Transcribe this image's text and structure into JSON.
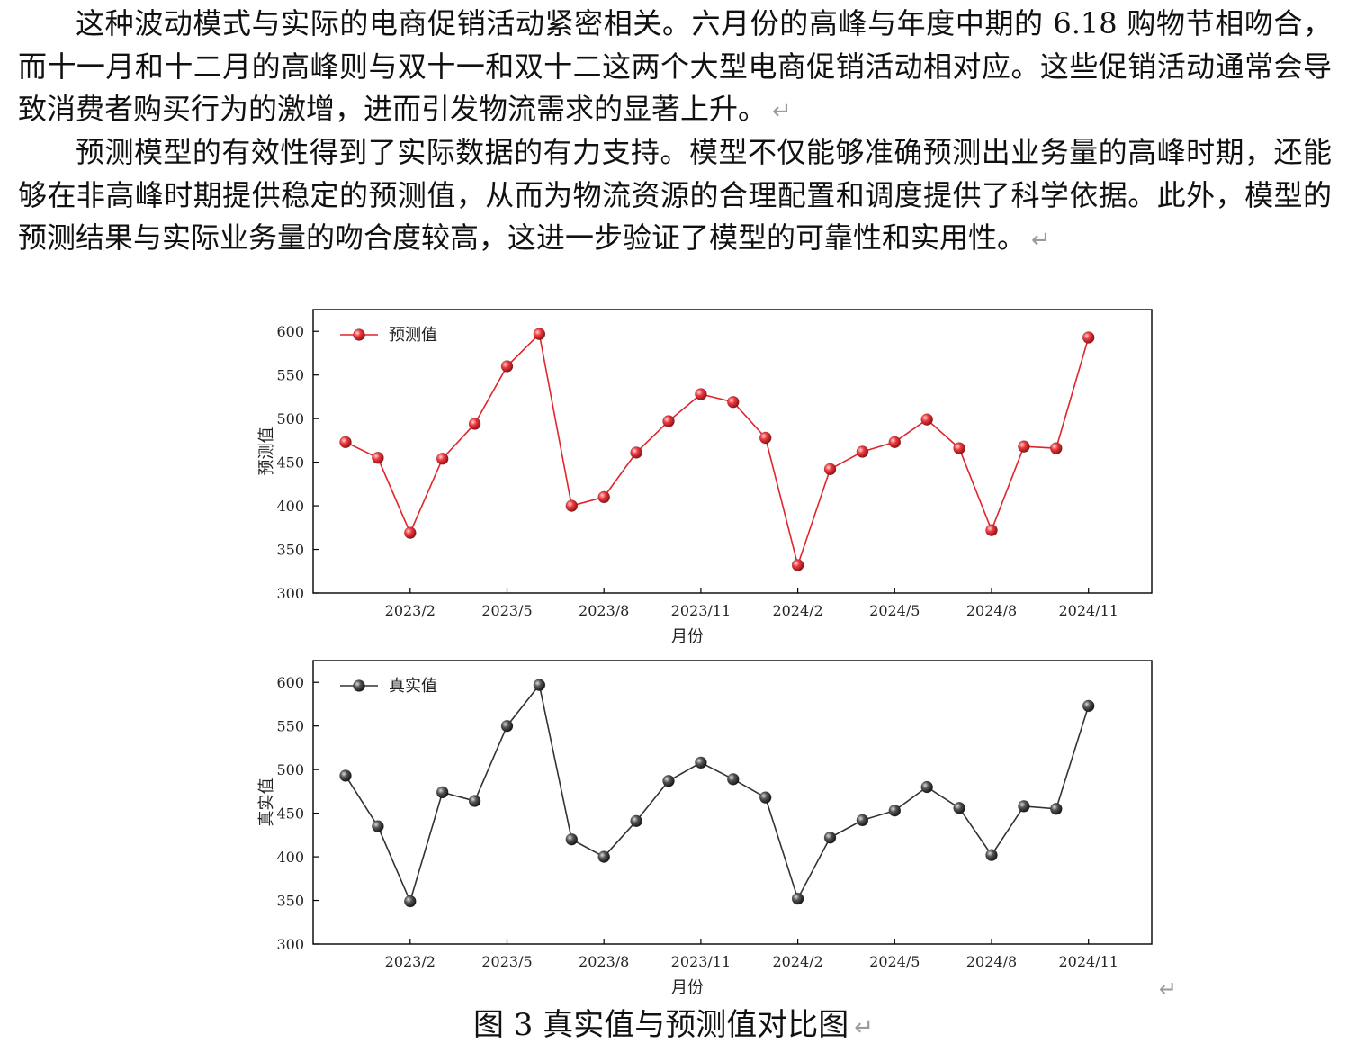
{
  "document": {
    "paragraph1": "这种波动模式与实际的电商促销活动紧密相关。六月份的高峰与年度中期的 6.18 购物节相吻合，而十一月和十二月的高峰则与双十一和双十二这两个大型电商促销活动相对应。这些促销活动通常会导致消费者购买行为的激增，进而引发物流需求的显著上升。",
    "paragraph2": "预测模型的有效性得到了实际数据的有力支持。模型不仅能够准确预测出业务量的高峰时期，还能够在非高峰时期提供稳定的预测值，从而为物流资源的合理配置和调度提供了科学依据。此外，模型的预测结果与实际业务量的吻合度较高，这进一步验证了模型的可靠性和实用性。",
    "paragraph_mark": "↵",
    "figure_caption": "图 3 真实值与预测值对比图"
  },
  "colors": {
    "predicted": "#e0252b",
    "actual": "#333333",
    "axis": "#000000",
    "paragraph_mark": "#9a9a9a"
  },
  "chart_data": [
    {
      "type": "line",
      "title": "",
      "xlabel": "月份",
      "ylabel": "预测值",
      "legend_position": "top-left",
      "grid": false,
      "ylim": [
        300,
        625
      ],
      "yticks": [
        300,
        350,
        400,
        450,
        500,
        550,
        600
      ],
      "xticks": [
        "2023/2",
        "2023/5",
        "2023/8",
        "2023/11",
        "2024/2",
        "2024/5",
        "2024/8",
        "2024/11"
      ],
      "x": [
        "2022/12",
        "2023/1",
        "2023/2",
        "2023/3",
        "2023/4",
        "2023/5",
        "2023/6",
        "2023/7",
        "2023/8",
        "2023/9",
        "2023/10",
        "2023/11",
        "2023/12",
        "2024/1",
        "2024/2",
        "2024/3",
        "2024/4",
        "2024/5",
        "2024/6",
        "2024/7",
        "2024/8",
        "2024/9",
        "2024/10",
        "2024/11"
      ],
      "series": [
        {
          "name": "预测值",
          "color": "#e0252b",
          "values": [
            473,
            455,
            369,
            454,
            494,
            560,
            597,
            400,
            410,
            461,
            497,
            528,
            519,
            478,
            332,
            442,
            462,
            473,
            499,
            466,
            372,
            468,
            466,
            593
          ]
        }
      ]
    },
    {
      "type": "line",
      "title": "",
      "xlabel": "月份",
      "ylabel": "真实值",
      "legend_position": "top-left",
      "grid": false,
      "ylim": [
        300,
        625
      ],
      "yticks": [
        300,
        350,
        400,
        450,
        500,
        550,
        600
      ],
      "xticks": [
        "2023/2",
        "2023/5",
        "2023/8",
        "2023/11",
        "2024/2",
        "2024/5",
        "2024/8",
        "2024/11"
      ],
      "x": [
        "2022/12",
        "2023/1",
        "2023/2",
        "2023/3",
        "2023/4",
        "2023/5",
        "2023/6",
        "2023/7",
        "2023/8",
        "2023/9",
        "2023/10",
        "2023/11",
        "2023/12",
        "2024/1",
        "2024/2",
        "2024/3",
        "2024/4",
        "2024/5",
        "2024/6",
        "2024/7",
        "2024/8",
        "2024/9",
        "2024/10",
        "2024/11"
      ],
      "series": [
        {
          "name": "真实值",
          "color": "#333333",
          "values": [
            493,
            435,
            349,
            474,
            464,
            550,
            597,
            420,
            400,
            441,
            487,
            508,
            489,
            468,
            352,
            422,
            442,
            453,
            480,
            456,
            402,
            458,
            455,
            573
          ]
        }
      ]
    }
  ]
}
